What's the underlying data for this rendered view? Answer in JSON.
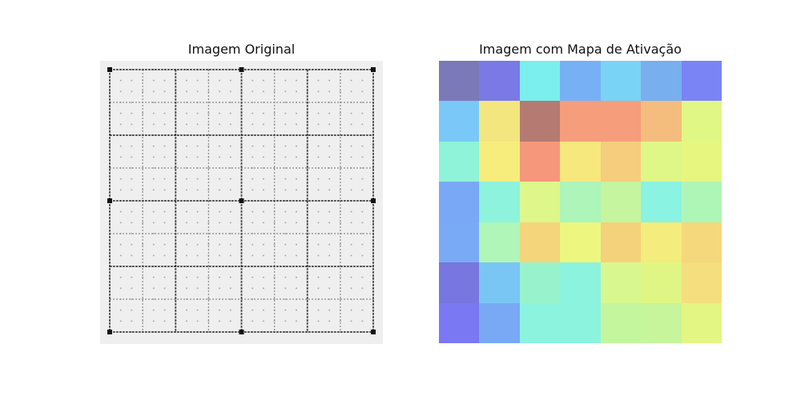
{
  "chart_data": [
    {
      "type": "image",
      "title": "Imagem Original",
      "background_color": "#efefef",
      "line_color": "#111111",
      "dot_color": "#9a9a9a",
      "major_divisions": 4,
      "minor_divisions_per_major": 2,
      "dots_per_minor": 2
    },
    {
      "type": "heatmap",
      "title": "Imagem com Mapa de Ativação",
      "rows": 7,
      "cols": 7,
      "cell_colors": [
        [
          "#7b79b8",
          "#7a79e6",
          "#7aefed",
          "#78b0f6",
          "#79d3f6",
          "#78afef",
          "#7a84f4"
        ],
        [
          "#79c8f7",
          "#f4e67f",
          "#b57a72",
          "#f69d7c",
          "#f69d7c",
          "#f4bd7d",
          "#e0f785"
        ],
        [
          "#8ef3d8",
          "#f6ed7d",
          "#f6977b",
          "#f6e87d",
          "#f5cd7d",
          "#dff786",
          "#e6f67f"
        ],
        [
          "#79a8f6",
          "#8df3dc",
          "#ddf78b",
          "#adf5b9",
          "#c5f59f",
          "#8af3e1",
          "#aef6b5"
        ],
        [
          "#79aaf6",
          "#aff6b8",
          "#f4d57b",
          "#edf77f",
          "#f4d27b",
          "#f4ec7c",
          "#f4d87b"
        ],
        [
          "#7876df",
          "#79c6f5",
          "#98f3cd",
          "#8cf3de",
          "#d9f78f",
          "#e0f684",
          "#f4de7d"
        ],
        [
          "#7a78f2",
          "#79a8f4",
          "#8cf3df",
          "#8cf3de",
          "#c4f79d",
          "#c6f59c",
          "#e3f683"
        ]
      ]
    }
  ]
}
